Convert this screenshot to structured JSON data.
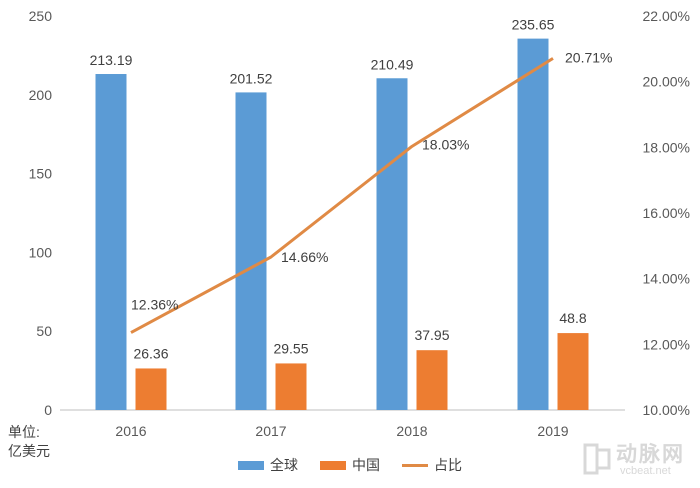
{
  "chart_data": {
    "type": "bar",
    "categories": [
      "2016",
      "2017",
      "2018",
      "2019"
    ],
    "series": [
      {
        "name": "全球",
        "type": "bar",
        "axis": "left",
        "color": "#5b9bd5",
        "values": [
          213.19,
          201.52,
          210.49,
          235.65
        ],
        "labels": [
          "213.19",
          "201.52",
          "210.49",
          "235.65"
        ]
      },
      {
        "name": "中国",
        "type": "bar",
        "axis": "left",
        "color": "#ed7d31",
        "values": [
          26.36,
          29.55,
          37.95,
          48.8
        ],
        "labels": [
          "26.36",
          "29.55",
          "37.95",
          "48.8"
        ]
      },
      {
        "name": "占比",
        "type": "line",
        "axis": "right",
        "color": "#e08a45",
        "values": [
          12.36,
          14.66,
          18.03,
          20.71
        ],
        "labels": [
          "12.36%",
          "14.66%",
          "18.03%",
          "20.71%"
        ]
      }
    ],
    "left_axis": {
      "ylim": [
        0,
        250
      ],
      "ticks": [
        "0",
        "50",
        "100",
        "150",
        "200",
        "250"
      ]
    },
    "right_axis": {
      "ylim": [
        10,
        22
      ],
      "ticks": [
        "10.00%",
        "12.00%",
        "14.00%",
        "16.00%",
        "18.00%",
        "20.00%",
        "22.00%"
      ]
    },
    "grid": false,
    "legend_position": "bottom",
    "unit_label_line1": "单位:",
    "unit_label_line2": "亿美元"
  },
  "watermark": {
    "brand": "动脉网",
    "domain": "vcbeat.net"
  }
}
